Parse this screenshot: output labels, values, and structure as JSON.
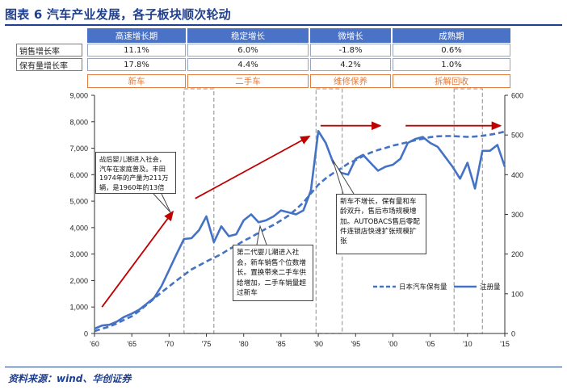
{
  "title": "图表 6 汽车产业发展，各子板块顺次轮动",
  "source": "资料来源：wind、华创证券",
  "table": {
    "phases": [
      "高速增长期",
      "稳定增长",
      "微增长",
      "成熟期"
    ],
    "rows": [
      {
        "label": "销售增长率",
        "values": [
          "11.1%",
          "6.0%",
          "-1.8%",
          "0.6%"
        ]
      },
      {
        "label": "保有量增长率",
        "values": [
          "17.8%",
          "4.4%",
          "4.2%",
          "1.0%"
        ]
      }
    ],
    "stages": [
      "新车",
      "二手车",
      "维修保养",
      "拆解回收"
    ]
  },
  "annotations": {
    "a1": "战后婴儿潮进入社会，汽车在家庭普及。丰田1974年的产量为211万辆，是1960年的13倍",
    "a2": "第二代婴儿潮进入社会，新车销售个位数增长。置换带来二手车供给增加，二手车销量超过新车",
    "a3": "新车不增长，保有量和车龄双升，售后市场规模增加。AUTOBACS售后零配件连锁店快速扩张规模扩张"
  },
  "colors": {
    "series": "#4472c4",
    "arrow": "#c00000",
    "phase": "#4a72c6",
    "stage": "#e07b3c",
    "title": "#1f3f8f"
  },
  "chart_data": {
    "type": "line",
    "x_tick_labels": [
      "'60",
      "'65",
      "'70",
      "'75",
      "'80",
      "'85",
      "'90",
      "'95",
      "'00",
      "'05",
      "'10",
      "'15"
    ],
    "x_range": [
      1960,
      2015
    ],
    "y_left": {
      "range": [
        0,
        9000
      ],
      "ticks": [
        "0",
        "1,000",
        "2,000",
        "3,000",
        "4,000",
        "5,000",
        "6,000",
        "7,000",
        "8,000",
        "9,000"
      ]
    },
    "y_right": {
      "range": [
        0,
        600
      ],
      "ticks": [
        "0",
        "100",
        "200",
        "300",
        "400",
        "500",
        "600"
      ]
    },
    "series": [
      {
        "name": "日本汽车保有量",
        "axis": "left",
        "style": "dashed",
        "x": [
          1960,
          1961,
          1962,
          1963,
          1964,
          1965,
          1966,
          1967,
          1968,
          1969,
          1970,
          1971,
          1972,
          1973,
          1974,
          1975,
          1976,
          1977,
          1978,
          1979,
          1980,
          1981,
          1982,
          1983,
          1984,
          1985,
          1986,
          1987,
          1988,
          1989,
          1990,
          1991,
          1992,
          1993,
          1994,
          1995,
          1996,
          1997,
          1998,
          1999,
          2000,
          2001,
          2002,
          2003,
          2004,
          2005,
          2006,
          2007,
          2008,
          2009,
          2010,
          2011,
          2012,
          2013,
          2014,
          2015
        ],
        "y": [
          90,
          180,
          260,
          380,
          520,
          650,
          850,
          1090,
          1320,
          1560,
          1780,
          2000,
          2210,
          2420,
          2570,
          2720,
          2860,
          3000,
          3180,
          3330,
          3500,
          3640,
          3800,
          3960,
          4100,
          4270,
          4450,
          4690,
          4950,
          5290,
          5620,
          5860,
          6060,
          6230,
          6420,
          6550,
          6700,
          6830,
          6930,
          7010,
          7100,
          7160,
          7230,
          7300,
          7360,
          7420,
          7450,
          7460,
          7460,
          7440,
          7430,
          7440,
          7470,
          7510,
          7560,
          7630
        ]
      },
      {
        "name": "注册量",
        "axis": "right",
        "style": "solid",
        "x": [
          1960,
          1961,
          1962,
          1963,
          1964,
          1965,
          1966,
          1967,
          1968,
          1969,
          1970,
          1971,
          1972,
          1973,
          1974,
          1975,
          1976,
          1977,
          1978,
          1979,
          1980,
          1981,
          1982,
          1983,
          1984,
          1985,
          1986,
          1987,
          1988,
          1989,
          1990,
          1991,
          1992,
          1993,
          1994,
          1995,
          1996,
          1997,
          1998,
          1999,
          2000,
          2001,
          2002,
          2003,
          2004,
          2005,
          2006,
          2007,
          2008,
          2009,
          2010,
          2011,
          2012,
          2013,
          2014,
          2015
        ],
        "y": [
          12,
          20,
          22,
          30,
          42,
          50,
          60,
          75,
          90,
          120,
          160,
          200,
          238,
          240,
          260,
          295,
          230,
          270,
          245,
          250,
          285,
          300,
          280,
          285,
          295,
          310,
          305,
          300,
          310,
          360,
          510,
          480,
          430,
          405,
          400,
          440,
          450,
          430,
          410,
          420,
          425,
          440,
          480,
          490,
          495,
          480,
          470,
          445,
          420,
          390,
          430,
          365,
          460,
          460,
          475,
          420
        ]
      }
    ]
  },
  "legend": {
    "s1": "日本汽车保有量",
    "s2": "注册量"
  }
}
